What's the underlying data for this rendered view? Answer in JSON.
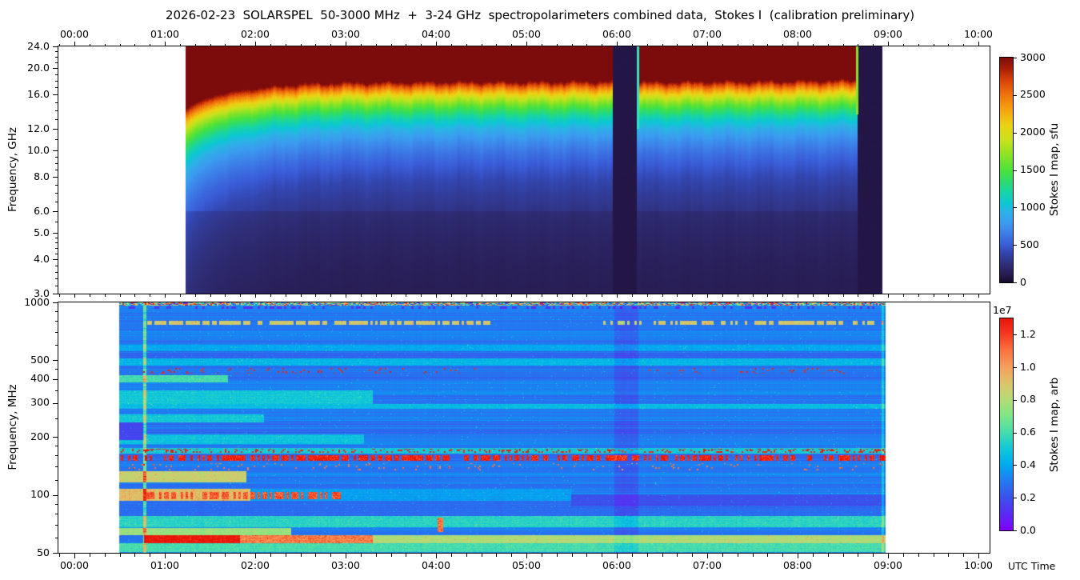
{
  "figure": {
    "title": "2026-02-23  SOLARSPEL  50-3000 MHz  +  3-24 GHz  spectropolarimeters combined data,  Stokes I  (calibration preliminary)",
    "utc_label": "UTC Time",
    "background": "#ffffff"
  },
  "chart_data": [
    {
      "panel": "top",
      "type": "heatmap",
      "ylabel": "Frequency, GHz",
      "yscale": "log",
      "ylim": [
        3.0,
        24.0
      ],
      "ytick_labels": [
        "24.0",
        "20.0",
        "16.0",
        "12.0",
        "10.0",
        "8.0",
        "6.0",
        "5.0",
        "4.0",
        "3.0"
      ],
      "ytick_values": [
        24,
        20,
        16,
        12,
        10,
        8,
        6,
        5,
        4,
        3
      ],
      "yminor_values": [
        3.2,
        3.4,
        3.6,
        3.8,
        4.2,
        4.4,
        4.6,
        4.8,
        5.5,
        6.5,
        7,
        7.5,
        8.5,
        9,
        9.5,
        11,
        13,
        14,
        15,
        17,
        18,
        19,
        21,
        22,
        23
      ],
      "xtick_labels": [
        "00:00",
        "01:00",
        "02:00",
        "03:00",
        "04:00",
        "05:00",
        "06:00",
        "07:00",
        "08:00",
        "09:00",
        "10:00"
      ],
      "xtick_hours": [
        0,
        1,
        2,
        3,
        4,
        5,
        6,
        7,
        8,
        9,
        10
      ],
      "xminor_step_hours": 0.16667,
      "xlim_hours": [
        -0.177,
        10.124
      ],
      "data_start": "~01:14",
      "data_end": "~08:56",
      "data_start_hour": 1.23,
      "data_end_hour": 8.94,
      "gap_intervals": [
        {
          "label": "data gap ~05:58-06:13, near-zero flux (dark)",
          "start_hour": 5.96,
          "end_hour": 6.22
        },
        {
          "label": "data gap ~08:40-08:56, near-zero flux (dark)",
          "start_hour": 8.66,
          "end_hour": 8.94
        }
      ],
      "edge_flash_lines": [
        {
          "hour": 6.228,
          "color": "#35e0c8",
          "f_top_ghz": 24,
          "f_bottom_ghz": 12
        },
        {
          "hour": 8.652,
          "color": "#8ae030",
          "f_top_ghz": 24,
          "f_bottom_ghz": 13.5
        }
      ],
      "saturation_edge_ghz": {
        "hours": [
          1.23,
          1.35,
          1.55,
          1.8,
          2.1,
          2.5,
          3.0,
          3.5,
          4.0,
          4.5,
          5.0,
          5.5,
          5.96,
          6.22,
          6.8,
          7.5,
          8.0,
          8.4,
          8.66
        ],
        "ghz": [
          14.2,
          15.0,
          15.9,
          16.5,
          17.0,
          17.5,
          17.7,
          17.75,
          17.8,
          17.85,
          17.8,
          17.85,
          17.9,
          17.8,
          17.85,
          17.9,
          17.95,
          18.05,
          18.1
        ]
      },
      "flux_model": {
        "description": "Stokes I saturated (>3000 sfu, dark red) above the edge frequency; below edge flux ~ 3000*exp(-(edge-f)/5.0) sfu, slight darkening step below 6 GHz",
        "decay_scale_ghz": 5.0,
        "below_6ghz_factor": 0.82,
        "gap_flux_sfu": 82
      },
      "colorbar": {
        "label": "Stokes I map, sfu",
        "min": 0,
        "max": 3000,
        "tick_labels": [
          "0",
          "500",
          "1000",
          "1500",
          "2000",
          "2500",
          "3000"
        ],
        "tick_values": [
          0,
          500,
          1000,
          1500,
          2000,
          2500,
          3000
        ],
        "stops": [
          [
            0,
            "#150929"
          ],
          [
            100,
            "#271a4d"
          ],
          [
            250,
            "#2f2f7a"
          ],
          [
            400,
            "#3346af"
          ],
          [
            500,
            "#3a5cd8"
          ],
          [
            650,
            "#3c7ee8"
          ],
          [
            800,
            "#3b9cf0"
          ],
          [
            950,
            "#2ab4e4"
          ],
          [
            1050,
            "#0cc6d4"
          ],
          [
            1200,
            "#17d4a8"
          ],
          [
            1350,
            "#2edc6a"
          ],
          [
            1500,
            "#4ce23c"
          ],
          [
            1700,
            "#8ce224"
          ],
          [
            1900,
            "#c8e21c"
          ],
          [
            2100,
            "#ecd214"
          ],
          [
            2300,
            "#f4a410"
          ],
          [
            2500,
            "#f0740c"
          ],
          [
            2700,
            "#d84208"
          ],
          [
            2850,
            "#aa1e06"
          ],
          [
            3000,
            "#7c0c0c"
          ]
        ]
      }
    },
    {
      "panel": "bottom",
      "type": "heatmap",
      "ylabel": "Frequency, MHz",
      "yscale": "log",
      "ylim": [
        50,
        1000
      ],
      "ytick_labels": [
        "1000",
        "500",
        "400",
        "300",
        "200",
        "100",
        "50"
      ],
      "ytick_values": [
        1000,
        500,
        400,
        300,
        200,
        100,
        50
      ],
      "yminor_values": [
        60,
        70,
        80,
        90,
        120,
        140,
        160,
        180,
        250,
        350,
        450,
        600,
        700,
        800,
        900
      ],
      "xtick_labels": [
        "00:00",
        "01:00",
        "02:00",
        "03:00",
        "04:00",
        "05:00",
        "06:00",
        "07:00",
        "08:00",
        "09:00",
        "10:00"
      ],
      "xtick_hours": [
        0,
        1,
        2,
        3,
        4,
        5,
        6,
        7,
        8,
        9,
        10
      ],
      "xminor_step_hours": 0.16667,
      "xlim_hours": [
        -0.177,
        10.124
      ],
      "data_start": "~00:30",
      "data_end": "~08:58",
      "data_start_hour": 0.495,
      "data_end_hour": 8.975,
      "base_level_1e7": 0.3,
      "row_noise_1e7": 0.05,
      "features": [
        {
          "name": "speckle-line-1000mhz",
          "f_mhz": [
            958,
            1000
          ],
          "hours": [
            0.495,
            8.975
          ],
          "style": "speckle"
        },
        {
          "name": "violet-line-940mhz",
          "f_mhz": [
            922,
            955
          ],
          "hours": [
            0.6,
            8.975
          ],
          "style": "dashes",
          "value_1e7": 0.12,
          "density": 0.3
        },
        {
          "name": "yellow-line-785mhz-early",
          "f_mhz": [
            768,
            802
          ],
          "hours": [
            0.78,
            4.6
          ],
          "style": "dashes",
          "value_1e7": 0.88,
          "density": 0.75
        },
        {
          "name": "yellow-line-785mhz-late",
          "f_mhz": [
            768,
            802
          ],
          "hours": [
            5.85,
            8.95
          ],
          "style": "dashes",
          "value_1e7": 0.88,
          "density": 0.6
        },
        {
          "name": "cyan-line-580mhz",
          "f_mhz": [
            558,
            602
          ],
          "hours": [
            0.495,
            8.975
          ],
          "style": "band",
          "value_1e7": 0.4
        },
        {
          "name": "indigo-line-530mhz",
          "f_mhz": [
            512,
            548
          ],
          "hours": [
            0.495,
            8.975
          ],
          "style": "band",
          "value_1e7": 0.25
        },
        {
          "name": "cyan-band-500mhz",
          "f_mhz": [
            468,
            510
          ],
          "hours": [
            0.495,
            8.975
          ],
          "style": "band",
          "value_1e7": 0.44
        },
        {
          "name": "green-band-400mhz",
          "f_mhz": [
            383,
            417
          ],
          "hours": [
            0.495,
            1.7
          ],
          "style": "band",
          "value_1e7": 0.6
        },
        {
          "name": "red-dots-440mhz-early",
          "f_mhz": [
            428,
            458
          ],
          "hours": [
            0.75,
            4.45
          ],
          "style": "dots",
          "value_1e7": 1.26,
          "density": 0.08
        },
        {
          "name": "red-dots-440mhz-late",
          "f_mhz": [
            428,
            458
          ],
          "hours": [
            6.3,
            8.6
          ],
          "style": "dots",
          "value_1e7": 1.26,
          "density": 0.06
        },
        {
          "name": "cyan-texture-320mhz",
          "f_mhz": [
            297,
            349
          ],
          "hours": [
            0.495,
            3.3
          ],
          "style": "band",
          "value_1e7": 0.5
        },
        {
          "name": "cyan-line-290mhz",
          "f_mhz": [
            280,
            296
          ],
          "hours": [
            0.495,
            8.975
          ],
          "style": "band",
          "value_1e7": 0.46
        },
        {
          "name": "cyan-band-250mhz",
          "f_mhz": [
            237,
            263
          ],
          "hours": [
            0.495,
            2.1
          ],
          "style": "band",
          "value_1e7": 0.5
        },
        {
          "name": "cyan-texture-195mhz",
          "f_mhz": [
            184,
            206
          ],
          "hours": [
            0.495,
            3.2
          ],
          "style": "band",
          "value_1e7": 0.48
        },
        {
          "name": "dark-patch-210mhz",
          "f_mhz": [
            193,
            237
          ],
          "hours": [
            0.495,
            0.77
          ],
          "style": "band",
          "value_1e7": 0.17
        },
        {
          "name": "rfi-line-170mhz-base",
          "f_mhz": [
            164,
            176
          ],
          "hours": [
            0.495,
            8.975
          ],
          "style": "band",
          "value_1e7": 0.5
        },
        {
          "name": "rfi-line-170mhz-dots",
          "f_mhz": [
            166,
            174
          ],
          "hours": [
            0.495,
            8.975
          ],
          "style": "dots",
          "value_1e7": 1.27,
          "density": 0.2
        },
        {
          "name": "rfi-line-156mhz-dashes",
          "f_mhz": [
            151,
            160
          ],
          "hours": [
            0.495,
            8.975
          ],
          "style": "dashes",
          "value_1e7": 1.28,
          "density": 0.55
        },
        {
          "name": "segments-140mhz",
          "f_mhz": [
            134,
            146
          ],
          "hours": [
            0.495,
            8.975
          ],
          "style": "dots",
          "value_1e7": 1.1,
          "density": 0.05
        },
        {
          "name": "orange-band-125mhz",
          "f_mhz": [
            116,
            133
          ],
          "hours": [
            0.495,
            1.9
          ],
          "style": "band",
          "value_1e7": 0.85
        },
        {
          "name": "blue-band-86mhz",
          "f_mhz": [
            78,
            92
          ],
          "hours": [
            0.495,
            8.975
          ],
          "style": "band",
          "value_1e7": 0.27
        },
        {
          "name": "orange-band-100mhz",
          "f_mhz": [
            93,
            108
          ],
          "hours": [
            0.495,
            1.95
          ],
          "style": "band",
          "value_1e7": 0.92
        },
        {
          "name": "cyan-band-100mhz-mid",
          "f_mhz": [
            93,
            108
          ],
          "hours": [
            1.95,
            5.5
          ],
          "style": "band",
          "value_1e7": 0.38
        },
        {
          "name": "indigo-band-95mhz",
          "f_mhz": [
            87,
            101
          ],
          "hours": [
            5.5,
            8.975
          ],
          "style": "band",
          "value_1e7": 0.2
        },
        {
          "name": "darkred-dashes-99mhz",
          "f_mhz": [
            95,
            103
          ],
          "hours": [
            0.8,
            2.95
          ],
          "style": "dashes",
          "value_1e7": 1.15,
          "density": 0.6
        },
        {
          "name": "green-line-73mhz",
          "f_mhz": [
            68,
            78
          ],
          "hours": [
            0.495,
            8.975
          ],
          "style": "band",
          "value_1e7": 0.55
        },
        {
          "name": "burst-blip-70mhz",
          "f_mhz": [
            64,
            76
          ],
          "hours": [
            4.02,
            4.08
          ],
          "style": "band",
          "value_1e7": 1.1
        },
        {
          "name": "yellow-band-64mhz",
          "f_mhz": [
            61.5,
            67.5
          ],
          "hours": [
            0.495,
            2.4
          ],
          "style": "band",
          "value_1e7": 0.75
        },
        {
          "name": "burst-band-60mhz-red",
          "f_mhz": [
            56,
            62
          ],
          "hours": [
            0.77,
            1.83
          ],
          "style": "band",
          "value_1e7": 1.32
        },
        {
          "name": "burst-band-60mhz-decay",
          "f_mhz": [
            56,
            62
          ],
          "hours": [
            1.83,
            3.3
          ],
          "style": "band",
          "value_1e7": 1.08
        },
        {
          "name": "band-60mhz-late",
          "f_mhz": [
            56,
            62
          ],
          "hours": [
            3.3,
            8.975
          ],
          "style": "band",
          "value_1e7": 0.8
        },
        {
          "name": "green-band-54mhz",
          "f_mhz": [
            50.5,
            56
          ],
          "hours": [
            0.495,
            8.975
          ],
          "style": "band",
          "value_1e7": 0.6
        }
      ],
      "columns": [
        {
          "name": "type-iii-burst-column",
          "hours": [
            0.762,
            0.795
          ],
          "effect": "brighten",
          "value_1e7": 0.3
        },
        {
          "name": "quiet-interval-column",
          "hours": [
            5.97,
            6.24
          ],
          "effect": "dim",
          "value_1e7": -0.07
        },
        {
          "name": "end-edge-line",
          "hours": [
            8.925,
            8.952
          ],
          "effect": "brighten",
          "value_1e7": 0.18
        }
      ],
      "colorbar": {
        "label": "Stokes I map, arb",
        "scale_note": "1e7",
        "min": 0,
        "max": 1.3,
        "tick_labels": [
          "0.0",
          "0.2",
          "0.4",
          "0.6",
          "0.8",
          "1.0",
          "1.2"
        ],
        "tick_values": [
          0,
          0.2,
          0.4,
          0.6,
          0.8,
          1.0,
          1.2
        ],
        "stops": [
          [
            0,
            "#7e00fb"
          ],
          [
            0.1,
            "#5b2af5"
          ],
          [
            0.2,
            "#3c50ea"
          ],
          [
            0.3,
            "#2379f2"
          ],
          [
            0.4,
            "#00aaf0"
          ],
          [
            0.5,
            "#10c8d8"
          ],
          [
            0.6,
            "#46dcae"
          ],
          [
            0.7,
            "#7ce688"
          ],
          [
            0.8,
            "#b2dc74"
          ],
          [
            0.9,
            "#dcc46a"
          ],
          [
            1.0,
            "#f4a05c"
          ],
          [
            1.1,
            "#fa7440"
          ],
          [
            1.2,
            "#f53c22"
          ],
          [
            1.3,
            "#e81408"
          ]
        ]
      }
    }
  ]
}
